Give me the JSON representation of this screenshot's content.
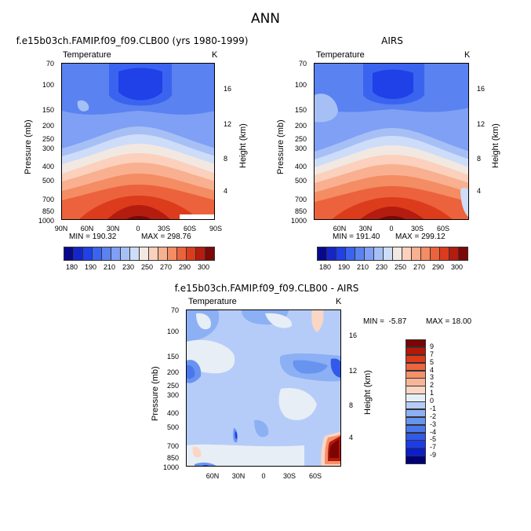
{
  "page_title": "ANN",
  "chart_data": [
    {
      "type": "heatmap",
      "id": "model",
      "title": "f.e15b03ch.FAMIP.f09_f09.CLB00 (yrs 1980-1999)",
      "subtitle_left": "Temperature",
      "subtitle_right": "K",
      "ylabel": "Pressure (mb)",
      "ylabel_right": "Height (km)",
      "yticks": [
        "70",
        "100",
        "150",
        "200",
        "250",
        "300",
        "400",
        "500",
        "700",
        "850",
        "1000"
      ],
      "yticks_right": [
        "16",
        "12",
        "8",
        "4"
      ],
      "xticks": [
        "90N",
        "60N",
        "30N",
        "0",
        "30S",
        "60S",
        "90S"
      ],
      "min_text": "MIN = 190.32",
      "max_text": "MAX = 298.76",
      "min": 190.32,
      "max": 298.76,
      "colorbar_labels": [
        "180",
        "190",
        "210",
        "230",
        "250",
        "270",
        "290",
        "300"
      ]
    },
    {
      "type": "heatmap",
      "id": "obs",
      "title": "AIRS",
      "subtitle_left": "Temperature",
      "subtitle_right": "K",
      "ylabel": "Pressure (mb)",
      "ylabel_right": "Height (km)",
      "yticks": [
        "70",
        "100",
        "150",
        "200",
        "250",
        "300",
        "400",
        "500",
        "700",
        "850",
        "1000"
      ],
      "yticks_right": [
        "16",
        "12",
        "8",
        "4"
      ],
      "xticks": [
        "60N",
        "30N",
        "0",
        "30S",
        "60S"
      ],
      "min_text": "MIN = 191.40",
      "max_text": "MAX = 299.12",
      "min": 191.4,
      "max": 299.12,
      "colorbar_labels": [
        "180",
        "190",
        "210",
        "230",
        "250",
        "270",
        "290",
        "300"
      ]
    },
    {
      "type": "heatmap",
      "id": "diff",
      "title": "f.e15b03ch.FAMIP.f09_f09.CLB00 - AIRS",
      "subtitle_left": "Temperature",
      "subtitle_right": "K",
      "ylabel": "Pressure (mb)",
      "ylabel_right": "Height (km)",
      "yticks": [
        "70",
        "100",
        "150",
        "200",
        "250",
        "300",
        "400",
        "500",
        "700",
        "850",
        "1000"
      ],
      "yticks_right": [
        "16",
        "12",
        "8",
        "4"
      ],
      "xticks": [
        "60N",
        "30N",
        "0",
        "30S",
        "60S"
      ],
      "min_text": "MIN =  -5.87",
      "max_text": "MAX = 18.00",
      "min": -5.87,
      "max": 18.0,
      "colorbar_labels": [
        "9",
        "7",
        "5",
        "4",
        "3",
        "2",
        "1",
        "0",
        "-1",
        "-2",
        "-3",
        "-4",
        "-5",
        "-7",
        "-9"
      ]
    }
  ],
  "colors": {
    "abs_scale": [
      "#08088c",
      "#1426c8",
      "#2040e8",
      "#3a64f0",
      "#5a82f0",
      "#7fa0f4",
      "#a6c0f6",
      "#cddcf8",
      "#f2e8e2",
      "#fbd0bc",
      "#f8b090",
      "#f48c64",
      "#ec623c",
      "#dc3c1c",
      "#b41c10",
      "#7c0808"
    ],
    "diff_scale": [
      "#000078",
      "#0a1ecc",
      "#1e3ce6",
      "#325ae8",
      "#4a78ec",
      "#6894f0",
      "#8cb0f4",
      "#b6ccf8",
      "#e8eef6",
      "#fad6c4",
      "#f8b698",
      "#f4906a",
      "#ec6440",
      "#dc3a1a",
      "#b41808",
      "#7c0404"
    ]
  }
}
